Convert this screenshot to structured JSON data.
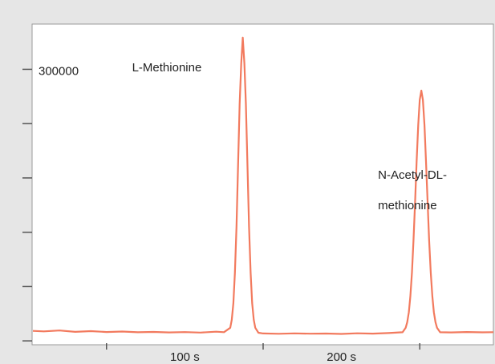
{
  "chart_data": {
    "type": "line",
    "color": "#f27a5e",
    "x": [
      3,
      10,
      20,
      30,
      40,
      50,
      60,
      70,
      80,
      90,
      100,
      110,
      120,
      125,
      129,
      130,
      131,
      132,
      133,
      134,
      135,
      136,
      137,
      138,
      139,
      140,
      141,
      142,
      143,
      144,
      145,
      147,
      150,
      160,
      170,
      180,
      190,
      200,
      210,
      220,
      230,
      239,
      241,
      242,
      243,
      244,
      245,
      246,
      247,
      248,
      249,
      250,
      251,
      252,
      253,
      254,
      255,
      256,
      257,
      258,
      259,
      260,
      261,
      263,
      270,
      280,
      290,
      297
    ],
    "values": [
      11000,
      10500,
      11500,
      10000,
      10800,
      9800,
      10300,
      9500,
      9900,
      9300,
      9700,
      9200,
      10100,
      9600,
      14500,
      23300,
      41800,
      75200,
      126400,
      192500,
      261600,
      306800,
      335000,
      306800,
      261600,
      192500,
      126400,
      75200,
      41800,
      23300,
      14500,
      9000,
      8200,
      7800,
      8300,
      7900,
      8100,
      7700,
      8400,
      8000,
      8600,
      9500,
      14600,
      20700,
      31600,
      49400,
      75700,
      110900,
      153300,
      198100,
      238300,
      266400,
      276500,
      266400,
      238300,
      198100,
      153300,
      110900,
      75700,
      49400,
      31600,
      20700,
      14600,
      9500,
      9300,
      9800,
      9400,
      9600
    ],
    "xlim": [
      2.5,
      297
    ],
    "ylim": [
      -4300,
      350000
    ],
    "xticks": [
      {
        "value": 100,
        "label": "100 s"
      },
      {
        "value": 200,
        "label": "200 s"
      }
    ],
    "xminor": [
      50,
      150,
      250
    ],
    "yticks": [
      300000
    ],
    "yminor": [
      0,
      60000,
      120000,
      180000,
      240000
    ],
    "annotations": [
      {
        "text": [
          "L-Methionine"
        ],
        "x": 137,
        "y": 335000
      },
      {
        "text": [
          "N-Acetyl-DL-",
          "methionine"
        ],
        "x": 251,
        "y": 276500
      }
    ]
  }
}
